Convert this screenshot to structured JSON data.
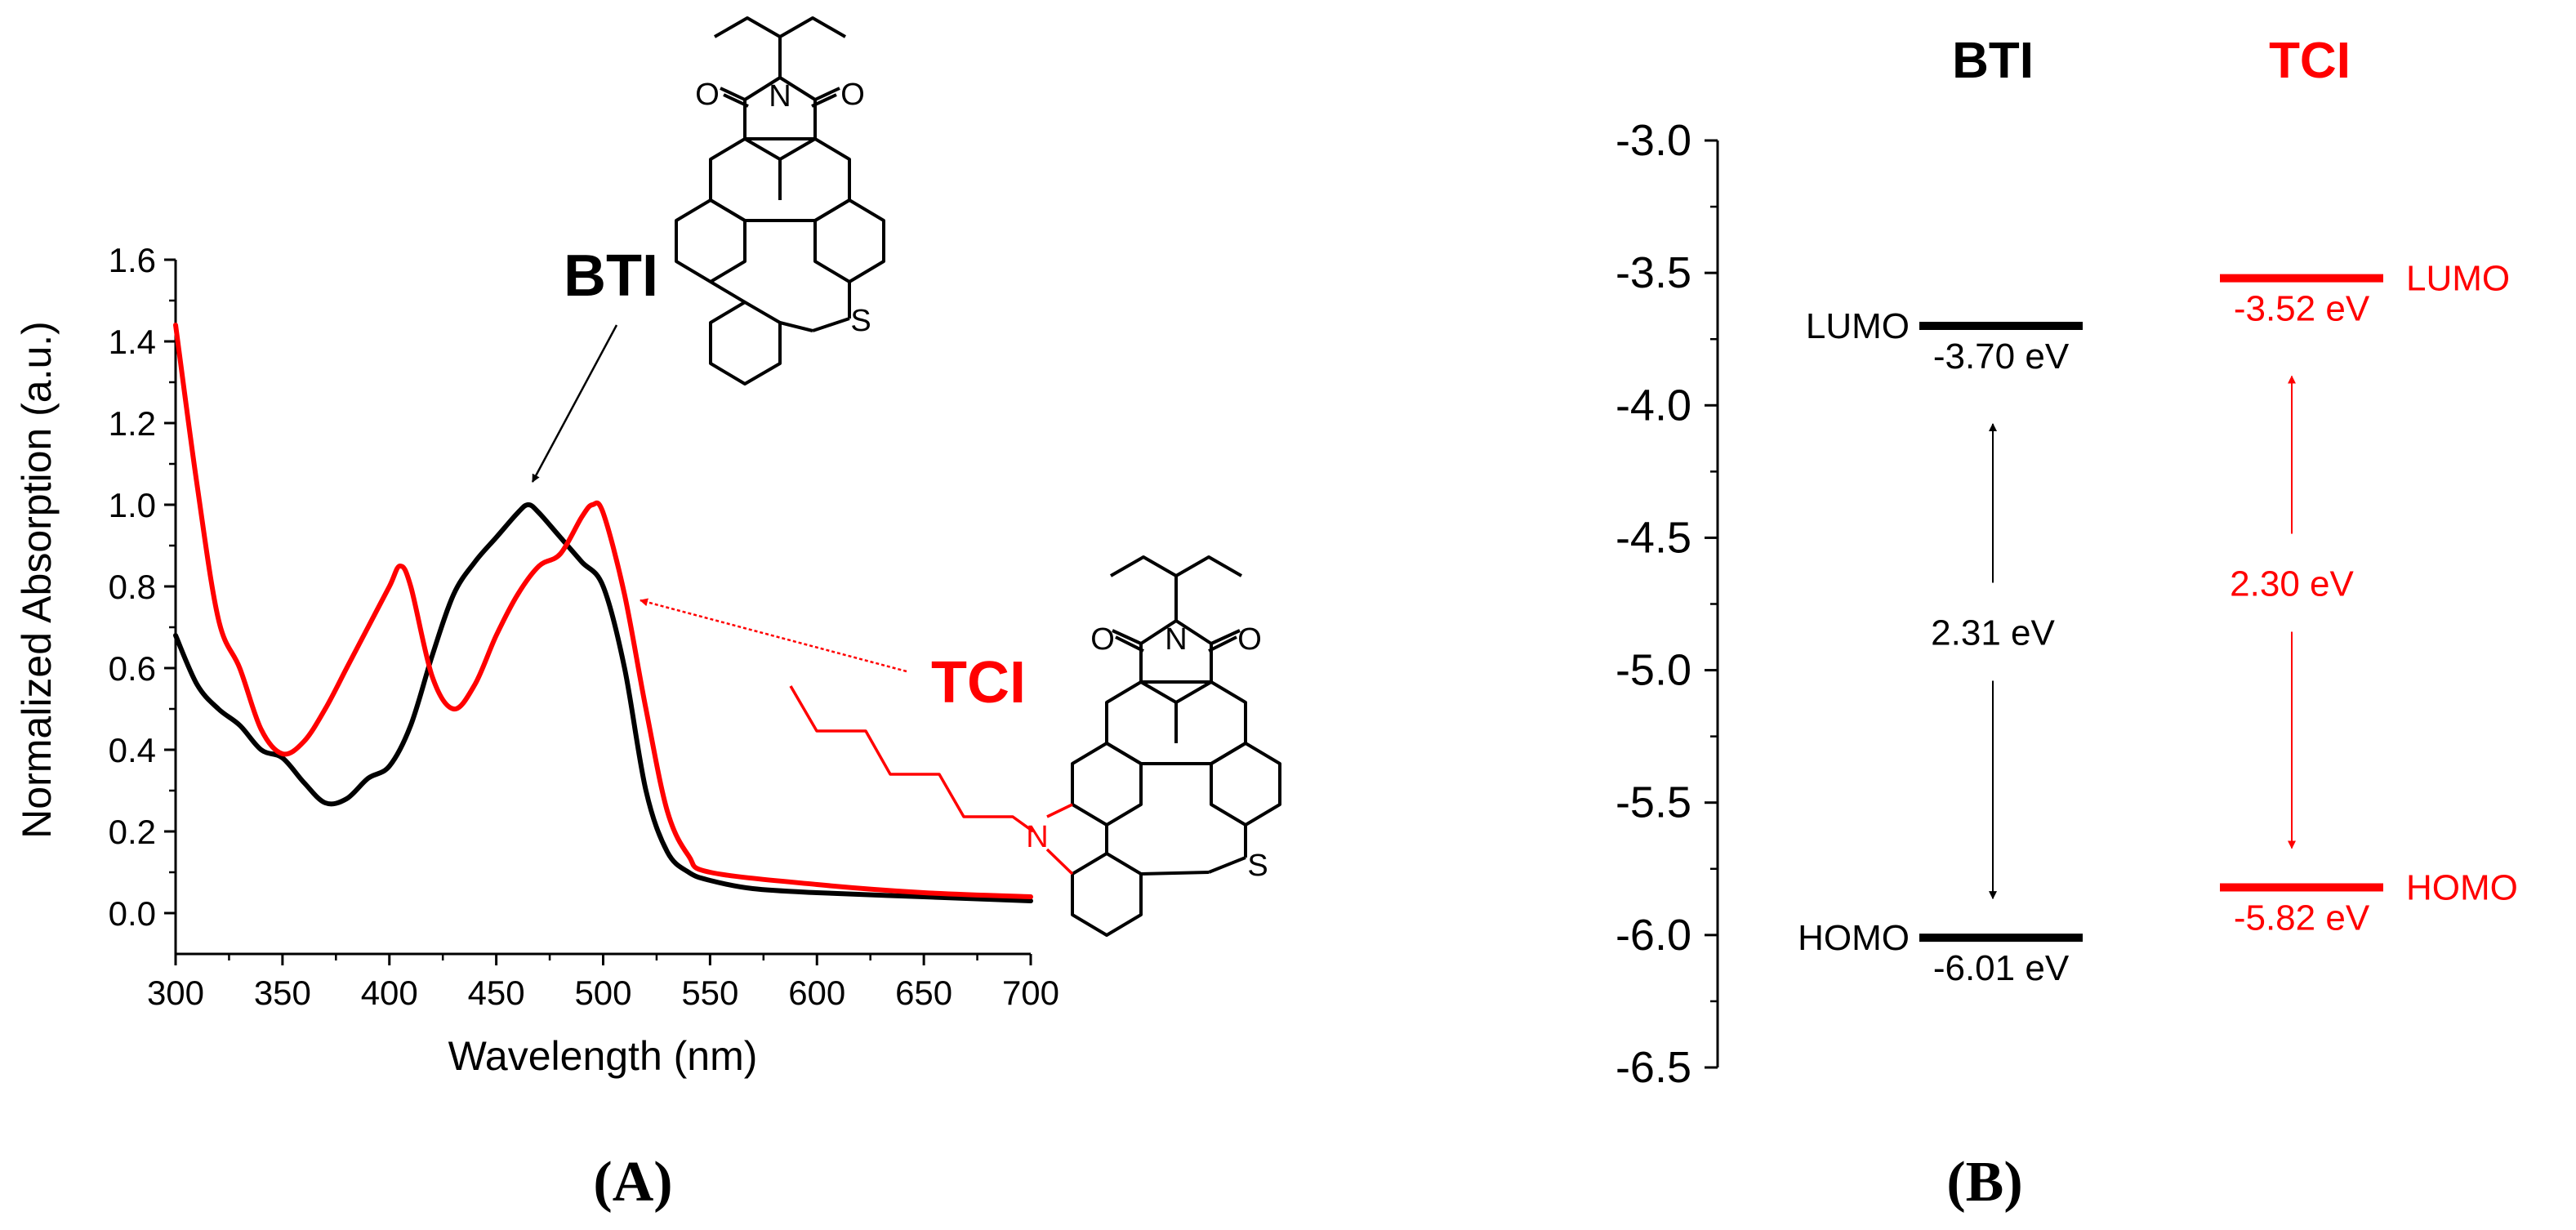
{
  "colors": {
    "bti": "#000000",
    "tci": "#ff0000"
  },
  "chart_data": [
    {
      "type": "line",
      "panel_label": "(A)",
      "xlabel": "Wavelength (nm)",
      "ylabel": "Normalized Absorption (a.u.)",
      "xlim": [
        300,
        700
      ],
      "ylim": [
        -0.1,
        1.6
      ],
      "xticks": [
        "300",
        "350",
        "400",
        "450",
        "500",
        "550",
        "600",
        "650",
        "700"
      ],
      "yticks": [
        "0.0",
        "0.2",
        "0.4",
        "0.6",
        "0.8",
        "1.0",
        "1.2",
        "1.4",
        "1.6"
      ],
      "annotations": [
        "BTI",
        "TCI"
      ],
      "structure_labels": {
        "oxygen": "O",
        "nitrogen": "N",
        "sulfur": "S"
      },
      "series": [
        {
          "name": "BTI",
          "color": "#000000",
          "x": [
            300,
            310,
            320,
            330,
            340,
            350,
            360,
            370,
            380,
            390,
            400,
            410,
            420,
            430,
            440,
            450,
            460,
            465,
            470,
            480,
            490,
            500,
            510,
            520,
            530,
            540,
            550,
            570,
            600,
            650,
            700
          ],
          "y": [
            0.68,
            0.56,
            0.5,
            0.46,
            0.4,
            0.38,
            0.32,
            0.27,
            0.28,
            0.33,
            0.36,
            0.46,
            0.63,
            0.78,
            0.86,
            0.92,
            0.98,
            1.0,
            0.98,
            0.92,
            0.86,
            0.8,
            0.6,
            0.3,
            0.15,
            0.1,
            0.08,
            0.06,
            0.05,
            0.04,
            0.03
          ]
        },
        {
          "name": "TCI",
          "color": "#ff0000",
          "x": [
            300,
            310,
            320,
            330,
            340,
            350,
            360,
            370,
            380,
            390,
            400,
            405,
            410,
            420,
            430,
            440,
            450,
            460,
            470,
            480,
            490,
            495,
            500,
            510,
            520,
            530,
            540,
            550,
            600,
            650,
            700
          ],
          "y": [
            1.44,
            1.05,
            0.72,
            0.6,
            0.45,
            0.39,
            0.42,
            0.5,
            0.6,
            0.7,
            0.8,
            0.85,
            0.8,
            0.58,
            0.5,
            0.56,
            0.68,
            0.78,
            0.85,
            0.88,
            0.97,
            1.0,
            0.98,
            0.78,
            0.5,
            0.25,
            0.14,
            0.1,
            0.07,
            0.05,
            0.04
          ]
        }
      ]
    },
    {
      "type": "energy_level_diagram",
      "panel_label": "(B)",
      "ylim": [
        -6.5,
        -3.0
      ],
      "yticks": [
        "-3.0",
        "-3.5",
        "-4.0",
        "-4.5",
        "-5.0",
        "-5.5",
        "-6.0",
        "-6.5"
      ],
      "grid": false,
      "columns": [
        {
          "name": "BTI",
          "color": "#000000",
          "lumo": -3.7,
          "homo": -6.01,
          "lumo_label": "-3.70 eV",
          "homo_label": "-6.01 eV",
          "gap_label": "2.31 eV",
          "lumo_tag": "LUMO",
          "homo_tag": "HOMO",
          "tag_side": "left"
        },
        {
          "name": "TCI",
          "color": "#ff0000",
          "lumo": -3.52,
          "homo": -5.82,
          "lumo_label": "-3.52 eV",
          "homo_label": "-5.82 eV",
          "gap_label": "2.30 eV",
          "lumo_tag": "LUMO",
          "homo_tag": "HOMO",
          "tag_side": "right"
        }
      ]
    }
  ]
}
